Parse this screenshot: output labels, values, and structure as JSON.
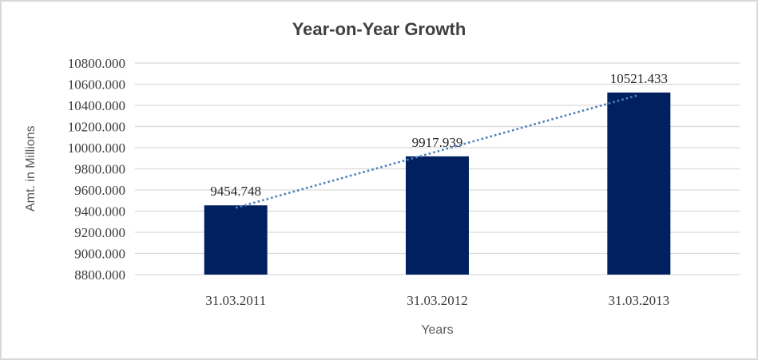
{
  "chart_data": {
    "type": "bar",
    "title": "Year-on-Year Growth",
    "xlabel": "Years",
    "ylabel": "Amt. in Millions",
    "categories": [
      "31.03.2011",
      "31.03.2012",
      "31.03.2013"
    ],
    "values": [
      9454.748,
      9917.939,
      10521.433
    ],
    "data_labels": [
      "9454.748",
      "9917.939",
      "10521.433"
    ],
    "y_tick_labels": [
      "10800.000",
      "10600.000",
      "10400.000",
      "10200.000",
      "10000.000",
      "9800.000",
      "9600.000",
      "9400.000",
      "9200.000",
      "9000.000",
      "8800.000"
    ],
    "ylim": [
      8800,
      10800
    ],
    "y_tick_step": 200,
    "grid": true,
    "legend": "none",
    "trendline": true,
    "colors": {
      "bar": "#002060",
      "trendline": "#4f81bd",
      "gridline": "#d9d9d9",
      "border": "#d9d9d9",
      "title_text": "#404040",
      "axis_title_text": "#595959",
      "tick_text": "#3b3b3b",
      "data_label_text": "#262626",
      "background": "#ffffff"
    }
  }
}
